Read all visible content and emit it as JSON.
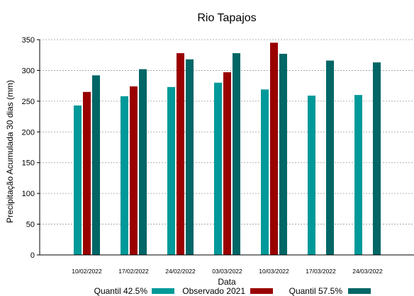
{
  "chart_data": {
    "type": "bar",
    "title": "Rio Tapajos",
    "xlabel": "Data",
    "ylabel": "Precipitação Acumulada 30 dias (mm)",
    "ylim": [
      0,
      350
    ],
    "yticks": [
      0,
      50,
      100,
      150,
      200,
      250,
      300,
      350
    ],
    "grid": true,
    "legend_position": "bottom",
    "categories": [
      "10/02/2022",
      "17/02/2022",
      "24/02/2022",
      "03/03/2022",
      "10/03/2022",
      "17/03/2022",
      "24/03/2022"
    ],
    "series": [
      {
        "name": "Quantil 42.5%",
        "color": "#009999",
        "values": [
          243,
          258,
          273,
          280,
          269,
          259,
          260
        ]
      },
      {
        "name": "Observado 2021",
        "color": "#990000",
        "values": [
          265,
          274,
          328,
          297,
          345,
          null,
          null
        ]
      },
      {
        "name": "Quantil 57.5%",
        "color": "#006666",
        "values": [
          292,
          302,
          318,
          328,
          327,
          316,
          313
        ]
      }
    ]
  }
}
